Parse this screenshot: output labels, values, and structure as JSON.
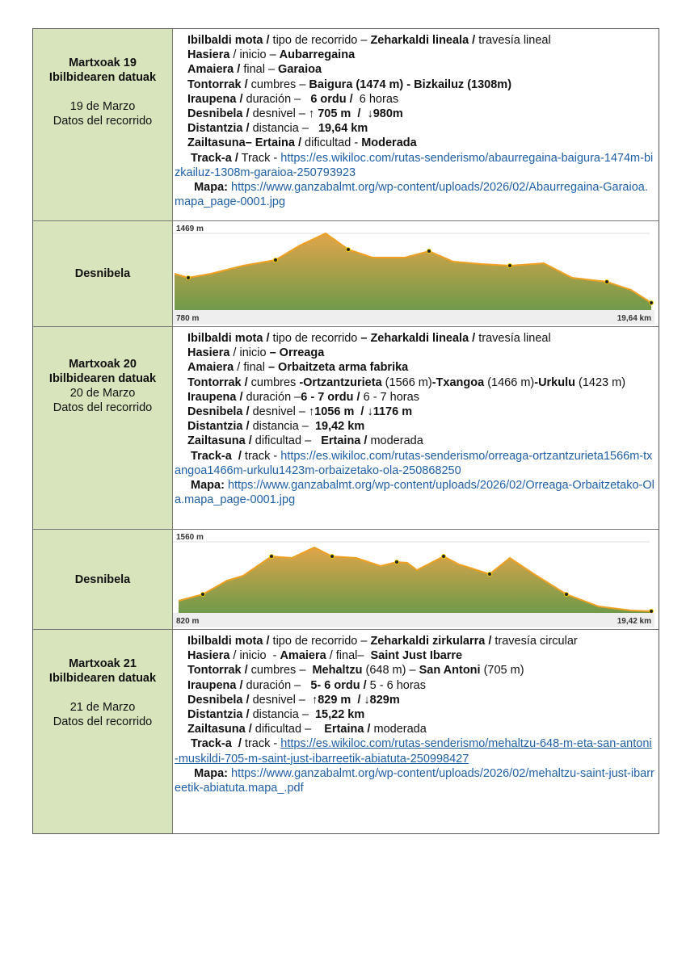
{
  "rows": [
    {
      "day": {
        "title": [
          "Martxoak 19",
          "Ibilbidearen datuak"
        ],
        "date": [
          "19 de Marzo",
          "Datos del recorrido"
        ]
      },
      "lines": [
        [
          {
            "b": "Ibilbaldi mota /"
          },
          {
            "t": " tipo de recorrido – "
          },
          {
            "b": "Zeharkaldi lineala /"
          },
          {
            "t": " travesía lineal"
          }
        ],
        [
          {
            "b": "Hasiera"
          },
          {
            "t": " / inicio – "
          },
          {
            "b": "Aubarregaina"
          }
        ],
        [
          {
            "b": "Amaiera /"
          },
          {
            "t": " final – "
          },
          {
            "b": "Garaioa"
          }
        ],
        [
          {
            "b": "Tontorrak /"
          },
          {
            "t": " cumbres – "
          },
          {
            "b": "Baigura (1474 m) - Bizkailuz (1308m)"
          }
        ],
        [
          {
            "b": "Iraupena /"
          },
          {
            "t": " duración –   "
          },
          {
            "b": "6 ordu / "
          },
          {
            "t": " 6 horas"
          }
        ],
        [
          {
            "b": "Desnibela /"
          },
          {
            "t": " desnivel – "
          },
          {
            "b": "↑ 705 m  /  ↓980m"
          }
        ],
        [
          {
            "b": "Distantzia /"
          },
          {
            "t": " distancia –   "
          },
          {
            "b": "19,64 km"
          }
        ],
        [
          {
            "b": "Zailtasuna– Ertaina /"
          },
          {
            "t": " dificultad - "
          },
          {
            "b": "Moderada"
          }
        ],
        [
          {
            "b": " Track-a /"
          },
          {
            "t": " Track - "
          },
          {
            "a": "https://es.wikiloc.com/rutas-senderismo/abaurregaina-baigura-1474m-bizkailuz-1308m-garaioa-250793923"
          }
        ],
        [
          {
            "b": "  Mapa:"
          },
          {
            "t": " "
          },
          {
            "a": "https://www.ganzabalmt.org/wp-content/uploads/2026/02/Abaurregaina-Garaioa.mapa_page-0001.jpg"
          }
        ]
      ]
    },
    {
      "profile": {
        "label": "Desnibela",
        "max": "1469 m",
        "min": "780 m",
        "distance": "19,64 km"
      }
    },
    {
      "day": {
        "title": [
          "Martxoak 20",
          "Ibilbidearen datuak"
        ],
        "date": [
          "20 de Marzo",
          "Datos del recorrido"
        ]
      },
      "lines": [
        [
          {
            "b": "Ibilbaldi mota /"
          },
          {
            "t": " tipo de recorrido "
          },
          {
            "b": "– Zeharkaldi lineala /"
          },
          {
            "t": " travesía lineal"
          }
        ],
        [
          {
            "b": "Hasiera"
          },
          {
            "t": " / inicio "
          },
          {
            "b": "– Orreaga"
          }
        ],
        [
          {
            "b": "Amaiera"
          },
          {
            "t": " / final "
          },
          {
            "b": "– Orbaitzeta arma fabrika"
          }
        ],
        [
          {
            "b": "Tontorrak /"
          },
          {
            "t": " cumbres "
          },
          {
            "b": "-Ortzantzurieta"
          },
          {
            "t": " (1566 m)"
          },
          {
            "b": "-Txangoa"
          },
          {
            "t": " (1466 m)"
          },
          {
            "b": "-Urkulu"
          },
          {
            "t": " (1423 m)"
          }
        ],
        [
          {
            "b": "Iraupena /"
          },
          {
            "t": " duración –"
          },
          {
            "b": "6 - 7 ordu /"
          },
          {
            "t": " 6 - 7 horas"
          }
        ],
        [
          {
            "b": "Desnibela /"
          },
          {
            "t": " desnivel – "
          },
          {
            "b": "↑1056 m  / ↓1176 m"
          }
        ],
        [
          {
            "b": "Distantzia /"
          },
          {
            "t": " distancia – "
          },
          {
            "b": " 19,42 km"
          }
        ],
        [
          {
            "b": "Zailtasuna /"
          },
          {
            "t": " dificultad –   "
          },
          {
            "b": "Ertaina /"
          },
          {
            "t": " moderada"
          }
        ],
        [
          {
            "b": " Track-a  /"
          },
          {
            "t": " track - "
          },
          {
            "a": "https://es.wikiloc.com/rutas-senderismo/orreaga-ortzantzurieta1566m-txangoa1466m-urkulu1423m-orbaizetako-ola-250868250"
          }
        ],
        [
          {
            "b": " Mapa:"
          },
          {
            "t": " "
          },
          {
            "a": "https://www.ganzabalmt.org/wp-content/uploads/2026/02/Orreaga-Orbaitzetako-Ola.mapa_page-0001.jpg"
          }
        ]
      ]
    },
    {
      "profile": {
        "label": "Desnibela",
        "max": "1560 m",
        "min": "820 m",
        "distance": "19,42 km"
      }
    },
    {
      "day": {
        "title": [
          "Martxoak 21",
          "Ibilbidearen datuak"
        ],
        "date": [
          "21 de Marzo",
          "Datos del recorrido"
        ]
      },
      "lines": [
        [
          {
            "b": "Ibilbaldi mota /"
          },
          {
            "t": " tipo de recorrido – "
          },
          {
            "b": "Zeharkaldi zirkularra /"
          },
          {
            "t": " travesía circular"
          }
        ],
        [
          {
            "b": "Hasiera"
          },
          {
            "t": " / inicio  - "
          },
          {
            "b": "Amaiera"
          },
          {
            "t": " / final– "
          },
          {
            "b": " Saint Just Ibarre"
          }
        ],
        [
          {
            "b": "Tontorrak /"
          },
          {
            "t": " cumbres –  "
          },
          {
            "b": "Mehaltzu"
          },
          {
            "t": " (648 m) – "
          },
          {
            "b": "San Antoni"
          },
          {
            "t": " (705 m)"
          }
        ],
        [
          {
            "b": "Iraupena /"
          },
          {
            "t": " duración –   "
          },
          {
            "b": "5- 6 ordu /"
          },
          {
            "t": " 5 - 6 horas"
          }
        ],
        [
          {
            "b": "Desnibela /"
          },
          {
            "t": " desnivel –  "
          },
          {
            "b": "↑829 m  / ↓829m"
          }
        ],
        [
          {
            "b": "Distantzia /"
          },
          {
            "t": " distancia –  "
          },
          {
            "b": "15,22 km"
          }
        ],
        [
          {
            "b": "Zailtasuna /"
          },
          {
            "t": " dificultad –    "
          },
          {
            "b": "Ertaina /"
          },
          {
            "t": " moderada"
          }
        ],
        [
          {
            "b": " Track-a  /"
          },
          {
            "t": " track - "
          },
          {
            "a": "https://es.wikiloc.com/rutas-senderismo/mehaltzu-648-m-eta-san-antoni-muskildi-705-m-saint-just-ibarreetik-abiatuta-250998427",
            "u": true
          }
        ],
        [
          {
            "b": "  Mapa:"
          },
          {
            "t": " "
          },
          {
            "a": "https://www.ganzabalmt.org/wp-content/uploads/2026/02/mehaltzu-saint-just-ibarreetik-abiatuta.mapa_.pdf"
          }
        ]
      ]
    }
  ]
}
